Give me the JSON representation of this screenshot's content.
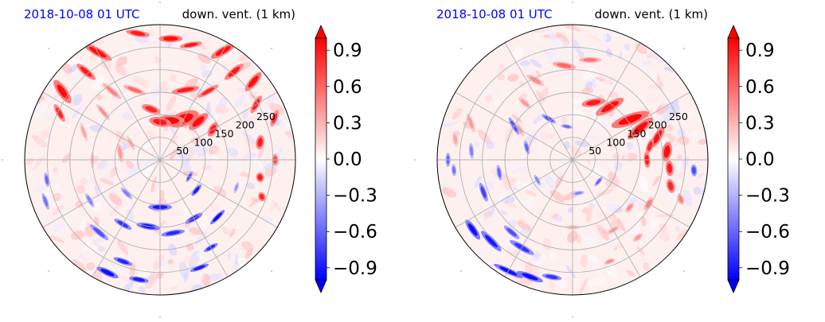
{
  "chart_data": [
    {
      "type": "heatmap",
      "projection": "polar",
      "title_left": "2018-10-08 01 UTC",
      "title_right": "down. vent. (1 km)",
      "title_left_color": "#0000ff",
      "radial_ticks": [
        "50",
        "100",
        "150",
        "200",
        "250"
      ],
      "radial_tick_values": [
        50,
        100,
        150,
        200,
        250
      ],
      "rmax": 300,
      "grid": true,
      "colorbar": {
        "cmap": "bwr",
        "vmin": -1.0,
        "vmax": 1.0,
        "extend": "both",
        "tick_values": [
          0.9,
          0.6,
          0.3,
          0.0,
          -0.3,
          -0.6,
          -0.9
        ],
        "tick_labels": [
          "0.9",
          "0.6",
          "0.3",
          "0.0",
          "−0.3",
          "−0.6",
          "−0.9"
        ]
      },
      "colors": {
        "positive": "#ff0000",
        "negative": "#0000ff",
        "neutral": "#ffffff"
      }
    },
    {
      "type": "heatmap",
      "projection": "polar",
      "title_left": "2018-10-08 01 UTC",
      "title_right": "down. vent. (1 km)",
      "title_left_color": "#0000ff",
      "radial_ticks": [
        "50",
        "100",
        "150",
        "200",
        "250"
      ],
      "radial_tick_values": [
        50,
        100,
        150,
        200,
        250
      ],
      "rmax": 300,
      "grid": true,
      "colorbar": {
        "cmap": "bwr",
        "vmin": -1.0,
        "vmax": 1.0,
        "extend": "both",
        "tick_values": [
          0.9,
          0.6,
          0.3,
          0.0,
          -0.3,
          -0.6,
          -0.9
        ],
        "tick_labels": [
          "0.9",
          "0.6",
          "0.3",
          "0.0",
          "−0.3",
          "−0.6",
          "−0.9"
        ]
      },
      "colors": {
        "positive": "#ff0000",
        "negative": "#0000ff",
        "neutral": "#ffffff"
      }
    }
  ]
}
